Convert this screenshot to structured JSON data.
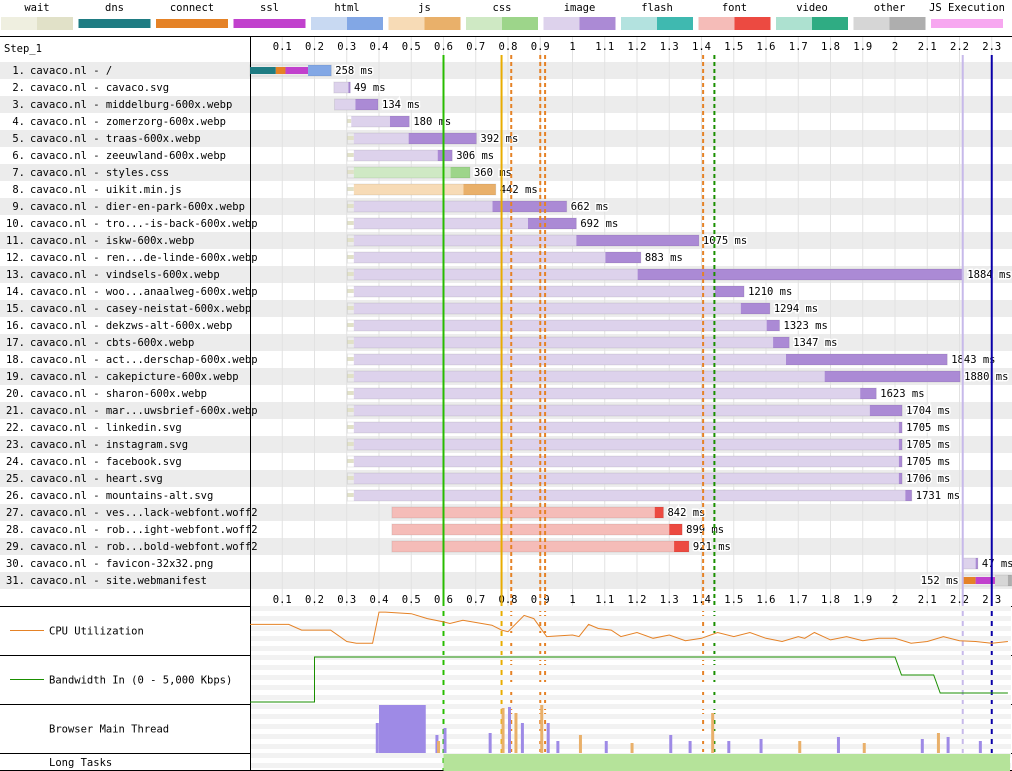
{
  "legend": [
    {
      "name": "wait",
      "light": "#efefe0",
      "dark": "#e1e1c8"
    },
    {
      "name": "dns",
      "light": "#1f7c83",
      "dark": "#1f7c83"
    },
    {
      "name": "connect",
      "light": "#e58226",
      "dark": "#e58226"
    },
    {
      "name": "ssl",
      "light": "#c141cd",
      "dark": "#c141cd"
    },
    {
      "name": "html",
      "light": "#c8d9f2",
      "dark": "#82a7e5"
    },
    {
      "name": "js",
      "light": "#f7dbb6",
      "dark": "#e9b06a"
    },
    {
      "name": "css",
      "light": "#cfe9c4",
      "dark": "#9dd58a"
    },
    {
      "name": "image",
      "light": "#ddd2ec",
      "dark": "#ab8ad5"
    },
    {
      "name": "flash",
      "light": "#b3e2df",
      "dark": "#3fb9b0"
    },
    {
      "name": "font",
      "light": "#f5bcb8",
      "dark": "#ec4a41"
    },
    {
      "name": "video",
      "light": "#ade1d0",
      "dark": "#2fac83"
    },
    {
      "name": "other",
      "light": "#d6d6d6",
      "dark": "#aeaeae"
    },
    {
      "name": "JS Execution",
      "light": "#f7a7f0",
      "dark": "#f7a7f0"
    }
  ],
  "step_label": "Step_1",
  "panels": {
    "cpu": "CPU Utilization",
    "bandwidth": "Bandwidth In (0 - 5,000 Kbps)",
    "main_thread": "Browser Main Thread",
    "long_tasks": "Long Tasks"
  },
  "chart_data": {
    "type": "waterfall",
    "x_unit": "seconds",
    "xlim": [
      0,
      2.35
    ],
    "ticks": [
      0.1,
      0.2,
      0.3,
      0.4,
      0.5,
      0.6,
      0.7,
      0.8,
      0.9,
      1.0,
      1.1,
      1.2,
      1.3,
      1.4,
      1.5,
      1.6,
      1.7,
      1.8,
      1.9,
      2.0,
      2.1,
      2.2,
      2.3
    ],
    "markers": [
      {
        "t": 0.6,
        "color": "#28bc00",
        "style": "solid"
      },
      {
        "t": 0.78,
        "color": "#e8ac00",
        "style": "solid"
      },
      {
        "t": 0.81,
        "color": "#e58226",
        "style": "dashed"
      },
      {
        "t": 0.9,
        "color": "#e58226",
        "style": "dashed"
      },
      {
        "t": 0.915,
        "color": "#e58226",
        "style": "dashed"
      },
      {
        "t": 1.405,
        "color": "#e58226",
        "style": "dashed"
      },
      {
        "t": 1.44,
        "color": "#1a8f00",
        "style": "dashed"
      },
      {
        "t": 2.21,
        "color": "#c7b9ea",
        "style": "solid"
      },
      {
        "t": 2.3,
        "color": "#0a00a8",
        "style": "solid"
      }
    ],
    "requests": [
      {
        "n": "1.",
        "label": "cavaco.nl - /",
        "type": "html",
        "start": 0.0,
        "dns": 0.08,
        "connect": 0.03,
        "ssl": 0.07,
        "ttfb": 0.0,
        "dl": 0.072,
        "time": "258 ms"
      },
      {
        "n": "2.",
        "label": "cavaco.nl - cavaco.svg",
        "type": "image",
        "start": 0.26,
        "wait": 0.0,
        "ttfb": 0.045,
        "dl": 0.005,
        "time": "49 ms"
      },
      {
        "n": "3.",
        "label": "cavaco.nl - middelburg-600x.webp",
        "type": "image",
        "start": 0.262,
        "wait": 0.0,
        "ttfb": 0.065,
        "dl": 0.07,
        "time": "134 ms"
      },
      {
        "n": "4.",
        "label": "cavaco.nl - zomerzorg-600x.webp",
        "type": "image",
        "start": 0.302,
        "wait": 0.012,
        "ttfb": 0.12,
        "dl": 0.06,
        "time": "180 ms"
      },
      {
        "n": "5.",
        "label": "cavaco.nl - traas-600x.webp",
        "type": "image",
        "start": 0.302,
        "wait": 0.02,
        "ttfb": 0.17,
        "dl": 0.21,
        "time": "392 ms"
      },
      {
        "n": "6.",
        "label": "cavaco.nl - zeeuwland-600x.webp",
        "type": "image",
        "start": 0.302,
        "wait": 0.02,
        "ttfb": 0.26,
        "dl": 0.045,
        "time": "306 ms"
      },
      {
        "n": "7.",
        "label": "cavaco.nl - styles.css",
        "type": "css",
        "start": 0.302,
        "wait": 0.02,
        "ttfb": 0.3,
        "dl": 0.06,
        "time": "360 ms"
      },
      {
        "n": "8.",
        "label": "cavaco.nl - uikit.min.js",
        "type": "js",
        "start": 0.302,
        "wait": 0.02,
        "ttfb": 0.34,
        "dl": 0.1,
        "time": "442 ms"
      },
      {
        "n": "9.",
        "label": "cavaco.nl - dier-en-park-600x.webp",
        "type": "image",
        "start": 0.302,
        "wait": 0.02,
        "ttfb": 0.43,
        "dl": 0.23,
        "time": "662 ms"
      },
      {
        "n": "10.",
        "label": "cavaco.nl - tro...-is-back-600x.webp",
        "type": "image",
        "start": 0.302,
        "wait": 0.02,
        "ttfb": 0.54,
        "dl": 0.15,
        "time": "692 ms"
      },
      {
        "n": "11.",
        "label": "cavaco.nl - iskw-600x.webp",
        "type": "image",
        "start": 0.302,
        "wait": 0.02,
        "ttfb": 0.69,
        "dl": 0.38,
        "time": "1075 ms"
      },
      {
        "n": "12.",
        "label": "cavaco.nl - ren...de-linde-600x.webp",
        "type": "image",
        "start": 0.302,
        "wait": 0.02,
        "ttfb": 0.78,
        "dl": 0.11,
        "time": "883 ms"
      },
      {
        "n": "13.",
        "label": "cavaco.nl - vindsels-600x.webp",
        "type": "image",
        "start": 0.302,
        "wait": 0.02,
        "ttfb": 0.88,
        "dl": 1.01,
        "time": "1884 ms"
      },
      {
        "n": "14.",
        "label": "cavaco.nl - woo...anaalweg-600x.webp",
        "type": "image",
        "start": 0.302,
        "wait": 0.02,
        "ttfb": 1.12,
        "dl": 0.09,
        "time": "1210 ms"
      },
      {
        "n": "15.",
        "label": "cavaco.nl - casey-neistat-600x.webp",
        "type": "image",
        "start": 0.302,
        "wait": 0.02,
        "ttfb": 1.2,
        "dl": 0.09,
        "time": "1294 ms"
      },
      {
        "n": "16.",
        "label": "cavaco.nl - dekzws-alt-600x.webp",
        "type": "image",
        "start": 0.302,
        "wait": 0.02,
        "ttfb": 1.28,
        "dl": 0.04,
        "time": "1323 ms"
      },
      {
        "n": "17.",
        "label": "cavaco.nl - cbts-600x.webp",
        "type": "image",
        "start": 0.302,
        "wait": 0.02,
        "ttfb": 1.3,
        "dl": 0.05,
        "time": "1347 ms"
      },
      {
        "n": "18.",
        "label": "cavaco.nl - act...derschap-600x.webp",
        "type": "image",
        "start": 0.302,
        "wait": 0.02,
        "ttfb": 1.34,
        "dl": 0.5,
        "time": "1843 ms"
      },
      {
        "n": "19.",
        "label": "cavaco.nl - cakepicture-600x.webp",
        "type": "image",
        "start": 0.302,
        "wait": 0.02,
        "ttfb": 1.46,
        "dl": 0.42,
        "time": "1880 ms"
      },
      {
        "n": "20.",
        "label": "cavaco.nl - sharon-600x.webp",
        "type": "image",
        "start": 0.302,
        "wait": 0.02,
        "ttfb": 1.57,
        "dl": 0.05,
        "time": "1623 ms"
      },
      {
        "n": "21.",
        "label": "cavaco.nl - mar...uwsbrief-600x.webp",
        "type": "image",
        "start": 0.302,
        "wait": 0.02,
        "ttfb": 1.6,
        "dl": 0.1,
        "time": "1704 ms"
      },
      {
        "n": "22.",
        "label": "cavaco.nl - linkedin.svg",
        "type": "image",
        "start": 0.302,
        "wait": 0.02,
        "ttfb": 1.69,
        "dl": 0.01,
        "time": "1705 ms"
      },
      {
        "n": "23.",
        "label": "cavaco.nl - instagram.svg",
        "type": "image",
        "start": 0.302,
        "wait": 0.02,
        "ttfb": 1.69,
        "dl": 0.01,
        "time": "1705 ms"
      },
      {
        "n": "24.",
        "label": "cavaco.nl - facebook.svg",
        "type": "image",
        "start": 0.302,
        "wait": 0.02,
        "ttfb": 1.69,
        "dl": 0.01,
        "time": "1705 ms"
      },
      {
        "n": "25.",
        "label": "cavaco.nl - heart.svg",
        "type": "image",
        "start": 0.302,
        "wait": 0.02,
        "ttfb": 1.69,
        "dl": 0.01,
        "time": "1706 ms"
      },
      {
        "n": "26.",
        "label": "cavaco.nl - mountains-alt.svg",
        "type": "image",
        "start": 0.302,
        "wait": 0.02,
        "ttfb": 1.71,
        "dl": 0.02,
        "time": "1731 ms"
      },
      {
        "n": "27.",
        "label": "cavaco.nl - ves...lack-webfont.woff2",
        "type": "font",
        "start": 0.44,
        "wait": 0.0,
        "ttfb": 0.815,
        "dl": 0.027,
        "time": "842 ms"
      },
      {
        "n": "28.",
        "label": "cavaco.nl - rob...ight-webfont.woff2",
        "type": "font",
        "start": 0.44,
        "wait": 0.0,
        "ttfb": 0.86,
        "dl": 0.04,
        "time": "899 ms"
      },
      {
        "n": "29.",
        "label": "cavaco.nl - rob...bold-webfont.woff2",
        "type": "font",
        "start": 0.44,
        "wait": 0.0,
        "ttfb": 0.875,
        "dl": 0.046,
        "time": "921 ms"
      },
      {
        "n": "30.",
        "label": "cavaco.nl - favicon-32x32.png",
        "type": "image",
        "start": 2.21,
        "wait": 0.0,
        "ttfb": 0.04,
        "dl": 0.007,
        "time": "47 ms"
      },
      {
        "n": "31.",
        "label": "cavaco.nl - site.webmanifest",
        "type": "other",
        "start": 2.21,
        "dns": 0.0,
        "connect": 0.04,
        "ssl": 0.06,
        "ttfb": 0.04,
        "dl": 0.012,
        "time": "152 ms",
        "time_left": true
      }
    ],
    "cpu_series": [
      [
        0,
        35
      ],
      [
        0.1,
        35
      ],
      [
        0.12,
        35
      ],
      [
        0.16,
        28
      ],
      [
        0.25,
        28
      ],
      [
        0.3,
        14
      ],
      [
        0.33,
        12
      ],
      [
        0.38,
        12
      ],
      [
        0.4,
        50
      ],
      [
        0.42,
        50
      ],
      [
        0.5,
        48
      ],
      [
        0.55,
        42
      ],
      [
        0.6,
        38
      ],
      [
        0.62,
        36
      ],
      [
        0.66,
        40
      ],
      [
        0.75,
        34
      ],
      [
        0.78,
        28
      ],
      [
        0.8,
        26
      ],
      [
        0.85,
        46
      ],
      [
        0.88,
        42
      ],
      [
        0.92,
        20
      ],
      [
        1.0,
        22
      ],
      [
        1.02,
        20
      ],
      [
        1.05,
        35
      ],
      [
        1.08,
        30
      ],
      [
        1.12,
        28
      ],
      [
        1.15,
        20
      ],
      [
        1.2,
        25
      ],
      [
        1.25,
        18
      ],
      [
        1.3,
        22
      ],
      [
        1.35,
        15
      ],
      [
        1.4,
        18
      ],
      [
        1.45,
        25
      ],
      [
        1.5,
        20
      ],
      [
        1.55,
        25
      ],
      [
        1.6,
        18
      ],
      [
        1.65,
        14
      ],
      [
        1.7,
        20
      ],
      [
        1.72,
        18
      ],
      [
        1.75,
        25
      ],
      [
        1.8,
        16
      ],
      [
        1.85,
        20
      ],
      [
        1.9,
        15
      ],
      [
        1.95,
        18
      ],
      [
        2.0,
        18
      ],
      [
        2.05,
        12
      ],
      [
        2.1,
        14
      ],
      [
        2.15,
        20
      ],
      [
        2.2,
        15
      ],
      [
        2.25,
        14
      ],
      [
        2.3,
        12
      ],
      [
        2.35,
        14
      ]
    ],
    "cpu_max": 55,
    "bandwidth_series": [
      [
        0,
        0
      ],
      [
        0.2,
        0
      ],
      [
        0.2,
        100
      ],
      [
        2.0,
        100
      ],
      [
        2.02,
        60
      ],
      [
        2.12,
        60
      ],
      [
        2.14,
        20
      ],
      [
        2.35,
        20
      ]
    ],
    "long_task_start": 0.6
  }
}
